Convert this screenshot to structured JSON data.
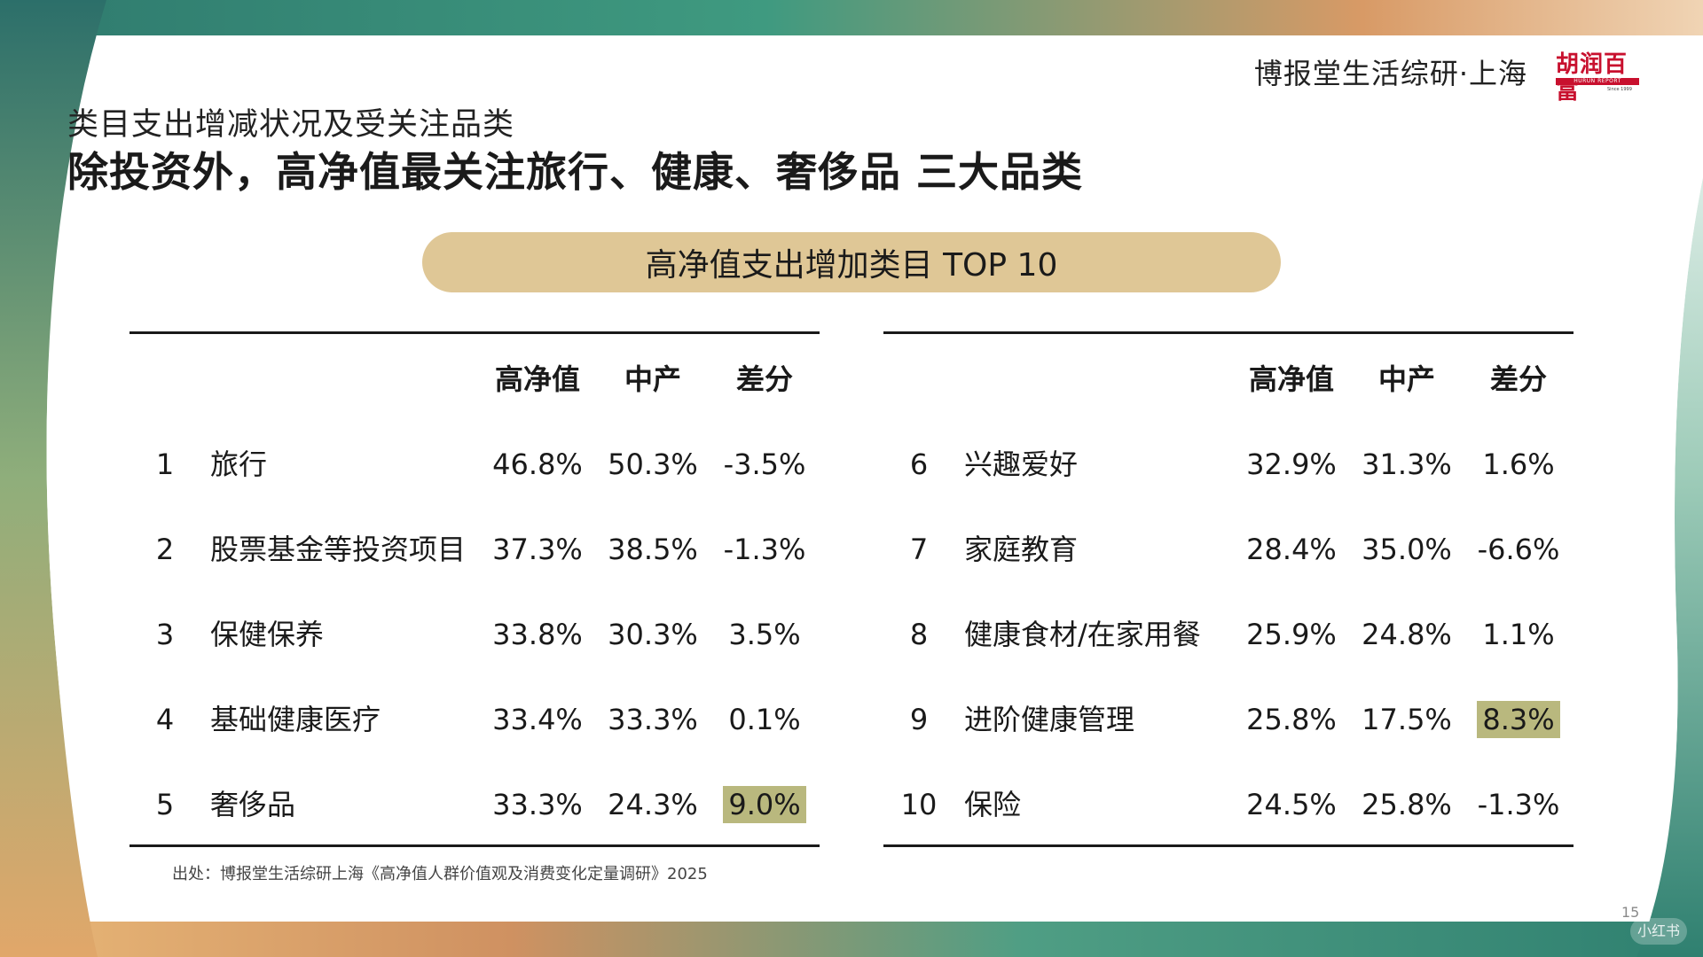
{
  "header": {
    "brand_text": "博报堂生活综研·上海",
    "logo_cn": "胡润百富",
    "logo_en": "HURUN REPORT",
    "logo_since": "Since 1999"
  },
  "subtitle": "类目支出增减状况及受关注品类",
  "title": "除投资外，高净值最关注旅行、健康、奢侈品 三大品类",
  "banner": "高净值支出增加类目 TOP 10",
  "table": {
    "columns": [
      "高净值",
      "中产",
      "差分"
    ],
    "highlight_color": "#b9b87e",
    "left": [
      {
        "rank": "1",
        "name": "旅行",
        "hnw": "46.8%",
        "mid": "50.3%",
        "diff": "-3.5%",
        "highlight": false
      },
      {
        "rank": "2",
        "name": "股票基金等投资项目",
        "hnw": "37.3%",
        "mid": "38.5%",
        "diff": "-1.3%",
        "highlight": false
      },
      {
        "rank": "3",
        "name": "保健保养",
        "hnw": "33.8%",
        "mid": "30.3%",
        "diff": "3.5%",
        "highlight": false
      },
      {
        "rank": "4",
        "name": "基础健康医疗",
        "hnw": "33.4%",
        "mid": "33.3%",
        "diff": "0.1%",
        "highlight": false
      },
      {
        "rank": "5",
        "name": "奢侈品",
        "hnw": "33.3%",
        "mid": "24.3%",
        "diff": "9.0%",
        "highlight": true
      }
    ],
    "right": [
      {
        "rank": "6",
        "name": "兴趣爱好",
        "hnw": "32.9%",
        "mid": "31.3%",
        "diff": "1.6%",
        "highlight": false
      },
      {
        "rank": "7",
        "name": "家庭教育",
        "hnw": "28.4%",
        "mid": "35.0%",
        "diff": "-6.6%",
        "highlight": false
      },
      {
        "rank": "8",
        "name": "健康食材/在家用餐",
        "hnw": "25.9%",
        "mid": "24.8%",
        "diff": "1.1%",
        "highlight": false
      },
      {
        "rank": "9",
        "name": "进阶健康管理",
        "hnw": "25.8%",
        "mid": "17.5%",
        "diff": "8.3%",
        "highlight": true
      },
      {
        "rank": "10",
        "name": "保险",
        "hnw": "24.5%",
        "mid": "25.8%",
        "diff": "-1.3%",
        "highlight": false
      }
    ]
  },
  "source": "出处：博报堂生活综研上海《高净值人群价值观及消费变化定量调研》2025",
  "page_number": "15",
  "watermark": "小红书",
  "colors": {
    "banner": "#dfc796",
    "green": "#3f9a80",
    "orange": "#d8955e",
    "teal": "#2c6f6a"
  }
}
